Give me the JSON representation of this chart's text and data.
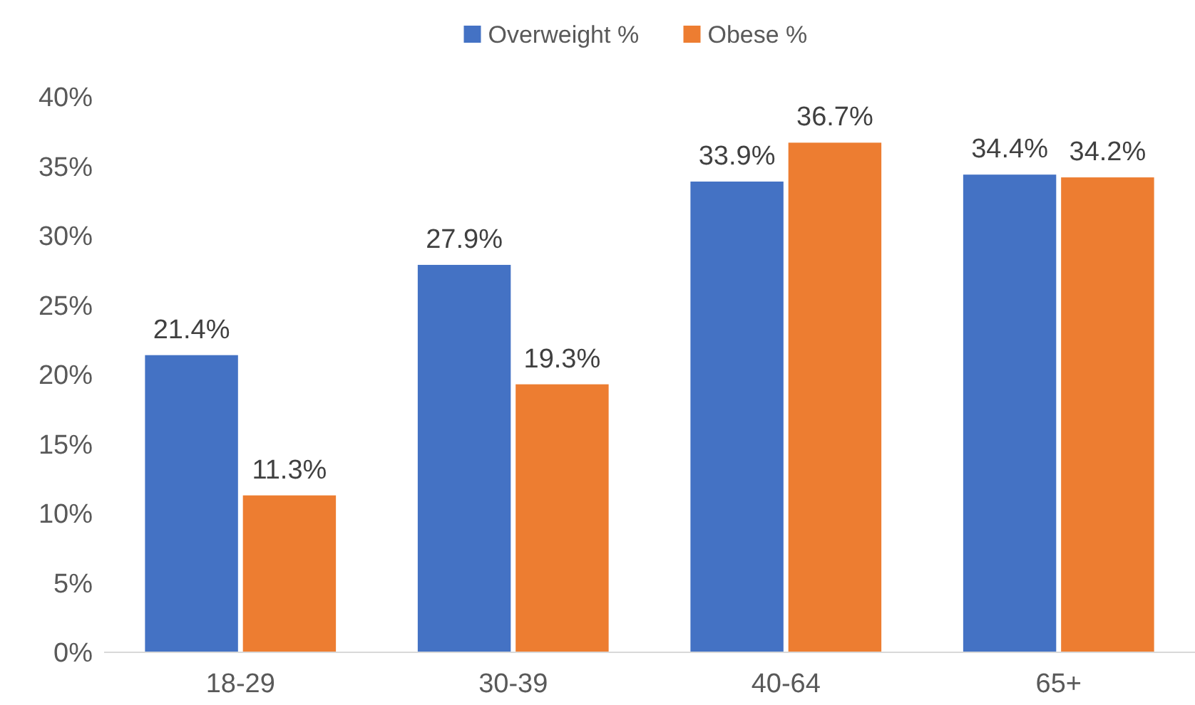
{
  "chart_data": {
    "type": "bar",
    "categories": [
      "18-29",
      "30-39",
      "40-64",
      "65+"
    ],
    "series": [
      {
        "name": "Overweight %",
        "color": "#4472c4",
        "values": [
          21.4,
          27.9,
          33.9,
          34.4
        ],
        "value_labels": [
          "21.4%",
          "27.9%",
          "33.9%",
          "34.4%"
        ]
      },
      {
        "name": "Obese %",
        "color": "#ed7d31",
        "values": [
          11.3,
          19.3,
          36.7,
          34.2
        ],
        "value_labels": [
          "11.3%",
          "19.3%",
          "36.7%",
          "34.2%"
        ]
      }
    ],
    "ylim": [
      0,
      40
    ],
    "yticks": [
      {
        "value": 0,
        "label": "0%"
      },
      {
        "value": 5,
        "label": "5%"
      },
      {
        "value": 10,
        "label": "10%"
      },
      {
        "value": 15,
        "label": "15%"
      },
      {
        "value": 20,
        "label": "20%"
      },
      {
        "value": 25,
        "label": "25%"
      },
      {
        "value": 30,
        "label": "30%"
      },
      {
        "value": 35,
        "label": "35%"
      },
      {
        "value": 40,
        "label": "40%"
      }
    ],
    "grid": false,
    "legend": "top"
  }
}
